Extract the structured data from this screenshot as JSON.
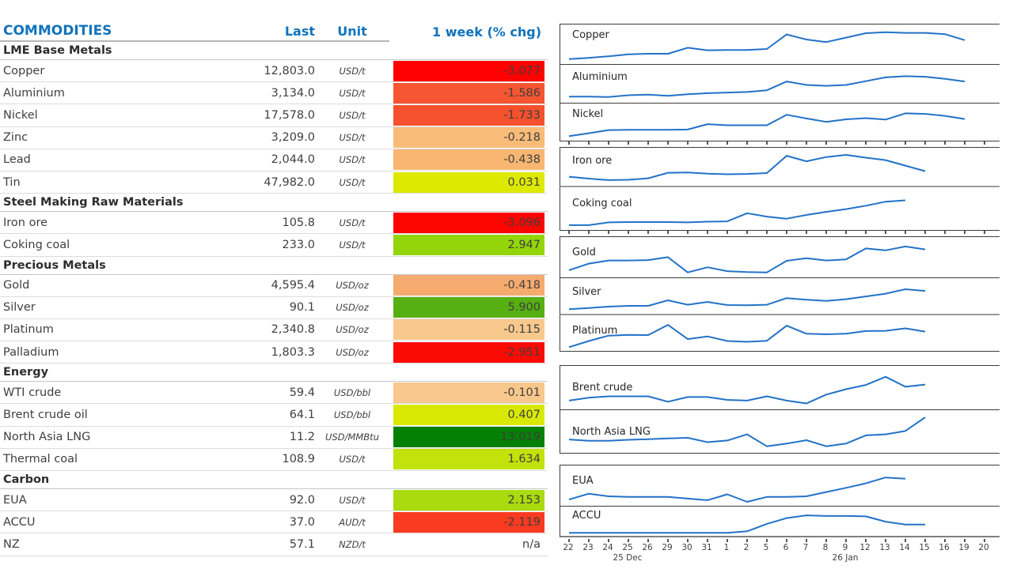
{
  "table": {
    "headers": {
      "name": "COMMODITIES",
      "last": "Last",
      "unit": "Unit",
      "week": "1 week (% chg)"
    },
    "sections": [
      {
        "label": "LME Base Metals",
        "rows": [
          {
            "name": "Copper",
            "last": "12,803.0",
            "unit": "USD/t",
            "chg": "-3.077",
            "color": "#FE0100"
          },
          {
            "name": "Aluminium",
            "last": "3,134.0",
            "unit": "USD/t",
            "chg": "-1.586",
            "color": "#F55532"
          },
          {
            "name": "Nickel",
            "last": "17,578.0",
            "unit": "USD/t",
            "chg": "-1.733",
            "color": "#F4512D"
          },
          {
            "name": "Zinc",
            "last": "3,209.0",
            "unit": "USD/t",
            "chg": "-0.218",
            "color": "#F8BB78"
          },
          {
            "name": "Lead",
            "last": "2,044.0",
            "unit": "USD/t",
            "chg": "-0.438",
            "color": "#F8B672"
          },
          {
            "name": "Tin",
            "last": "47,982.0",
            "unit": "USD/t",
            "chg": "0.031",
            "color": "#DEE902"
          }
        ]
      },
      {
        "label": "Steel Making Raw Materials",
        "rows": [
          {
            "name": "Iron ore",
            "last": "105.8",
            "unit": "USD/t",
            "chg": "-3.096",
            "color": "#FC0500"
          },
          {
            "name": "Coking coal",
            "last": "233.0",
            "unit": "USD/t",
            "chg": "2.947",
            "color": "#94D509"
          }
        ]
      },
      {
        "label": "Precious Metals",
        "rows": [
          {
            "name": "Gold",
            "last": "4,595.4",
            "unit": "USD/oz",
            "chg": "-0.418",
            "color": "#F6AB6E"
          },
          {
            "name": "Silver",
            "last": "90.1",
            "unit": "USD/oz",
            "chg": "5.900",
            "color": "#57B012"
          },
          {
            "name": "Platinum",
            "last": "2,340.8",
            "unit": "USD/oz",
            "chg": "-0.115",
            "color": "#F8C88D"
          },
          {
            "name": "Palladium",
            "last": "1,803.3",
            "unit": "USD/oz",
            "chg": "-2.951",
            "color": "#FC0B04"
          }
        ]
      },
      {
        "label": "Energy",
        "rows": [
          {
            "name": "WTI crude",
            "last": "59.4",
            "unit": "USD/bbl",
            "chg": "-0.101",
            "color": "#F8C78C"
          },
          {
            "name": "Brent crude oil",
            "last": "64.1",
            "unit": "USD/bbl",
            "chg": "0.407",
            "color": "#D9E904"
          },
          {
            "name": "North Asia LNG",
            "last": "11.2",
            "unit": "USD/MMBtu",
            "chg": "13.019",
            "color": "#048104"
          },
          {
            "name": "Thermal coal",
            "last": "108.9",
            "unit": "USD/t",
            "chg": "1.634",
            "color": "#C1E20A"
          }
        ]
      },
      {
        "label": "Carbon",
        "rows": [
          {
            "name": "EUA",
            "last": "92.0",
            "unit": "USD/t",
            "chg": "2.153",
            "color": "#AADB0F"
          },
          {
            "name": "ACCU",
            "last": "37.0",
            "unit": "AUD/t",
            "chg": "-2.119",
            "color": "#F93B21"
          },
          {
            "name": "NZ",
            "last": "57.1",
            "unit": "NZD/t",
            "chg": "n/a",
            "color": null
          }
        ]
      }
    ]
  },
  "chart_data": {
    "type": "line",
    "subtype": "sparkline-small-multiples",
    "line_color": "#2272C8",
    "note": "one-month price sparklines; no y-axis shown, values normalized 0-1 of each mini-chart height",
    "x_tick_labels": [
      "22",
      "23",
      "24",
      "25",
      "26",
      "29",
      "30",
      "31",
      "1",
      "2",
      "5",
      "6",
      "7",
      "8",
      "9",
      "12",
      "13",
      "14",
      "15",
      "16",
      "19",
      "20"
    ],
    "month_markers": [
      {
        "label": "25 Dec",
        "tick_index": 3
      },
      {
        "label": "26 Jan",
        "tick_index": 14
      }
    ],
    "groups": [
      {
        "charts": [
          {
            "name": "Copper",
            "values": [
              0.08,
              0.12,
              0.17,
              0.23,
              0.25,
              0.25,
              0.44,
              0.36,
              0.37,
              0.37,
              0.4,
              0.86,
              0.7,
              0.62,
              0.76,
              0.9,
              0.93,
              0.91,
              0.91,
              0.87,
              0.68
            ]
          },
          {
            "name": "Aluminium",
            "values": [
              0.1,
              0.1,
              0.09,
              0.15,
              0.17,
              0.13,
              0.18,
              0.22,
              0.24,
              0.26,
              0.32,
              0.62,
              0.5,
              0.47,
              0.5,
              0.63,
              0.76,
              0.8,
              0.78,
              0.71,
              0.62
            ]
          },
          {
            "name": "Nickel",
            "values": [
              0.05,
              0.15,
              0.26,
              0.27,
              0.27,
              0.27,
              0.28,
              0.47,
              0.43,
              0.43,
              0.43,
              0.8,
              0.67,
              0.55,
              0.64,
              0.68,
              0.63,
              0.85,
              0.83,
              0.76,
              0.65
            ]
          }
        ]
      },
      {
        "charts": [
          {
            "name": "Iron ore",
            "values": [
              0.24,
              0.18,
              0.13,
              0.14,
              0.19,
              0.37,
              0.38,
              0.34,
              0.32,
              0.33,
              0.36,
              0.92,
              0.74,
              0.88,
              0.95,
              0.86,
              0.78,
              0.6,
              0.42
            ]
          },
          {
            "name": "Coking coal",
            "values": [
              0.05,
              0.05,
              0.13,
              0.14,
              0.14,
              0.14,
              0.13,
              0.15,
              0.16,
              0.4,
              0.3,
              0.24,
              0.35,
              0.44,
              0.52,
              0.62,
              0.74,
              0.78
            ]
          }
        ]
      },
      {
        "charts": [
          {
            "name": "Gold",
            "values": [
              0.15,
              0.35,
              0.45,
              0.45,
              0.46,
              0.55,
              0.08,
              0.24,
              0.12,
              0.09,
              0.08,
              0.44,
              0.52,
              0.45,
              0.48,
              0.82,
              0.76,
              0.88,
              0.79
            ]
          },
          {
            "name": "Silver",
            "values": [
              0.08,
              0.12,
              0.17,
              0.2,
              0.2,
              0.4,
              0.24,
              0.34,
              0.23,
              0.22,
              0.24,
              0.48,
              0.42,
              0.38,
              0.44,
              0.54,
              0.64,
              0.8,
              0.74
            ]
          },
          {
            "name": "Platinum",
            "values": [
              0.02,
              0.25,
              0.45,
              0.48,
              0.47,
              0.85,
              0.32,
              0.42,
              0.25,
              0.22,
              0.26,
              0.82,
              0.52,
              0.5,
              0.52,
              0.62,
              0.63,
              0.72,
              0.6
            ]
          }
        ]
      },
      {
        "charts": [
          {
            "name": "Brent crude",
            "values": [
              0.18,
              0.26,
              0.3,
              0.3,
              0.3,
              0.15,
              0.28,
              0.28,
              0.2,
              0.18,
              0.3,
              0.18,
              0.1,
              0.35,
              0.5,
              0.62,
              0.85,
              0.57,
              0.63
            ]
          },
          {
            "name": "North Asia LNG",
            "values": [
              0.3,
              0.26,
              0.26,
              0.29,
              0.31,
              0.33,
              0.35,
              0.22,
              0.27,
              0.45,
              0.1,
              0.18,
              0.28,
              0.1,
              0.18,
              0.42,
              0.45,
              0.55,
              0.95
            ]
          }
        ]
      },
      {
        "charts": [
          {
            "name": "EUA",
            "values": [
              0.12,
              0.3,
              0.22,
              0.2,
              0.2,
              0.2,
              0.15,
              0.1,
              0.28,
              0.05,
              0.2,
              0.2,
              0.22,
              0.35,
              0.48,
              0.62,
              0.8,
              0.76
            ]
          },
          {
            "name": "ACCU",
            "values": [
              0.03,
              0.03,
              0.03,
              0.03,
              0.03,
              0.03,
              0.03,
              0.03,
              0.03,
              0.1,
              0.45,
              0.72,
              0.85,
              0.82,
              0.82,
              0.8,
              0.55,
              0.42,
              0.42
            ]
          }
        ]
      }
    ]
  }
}
